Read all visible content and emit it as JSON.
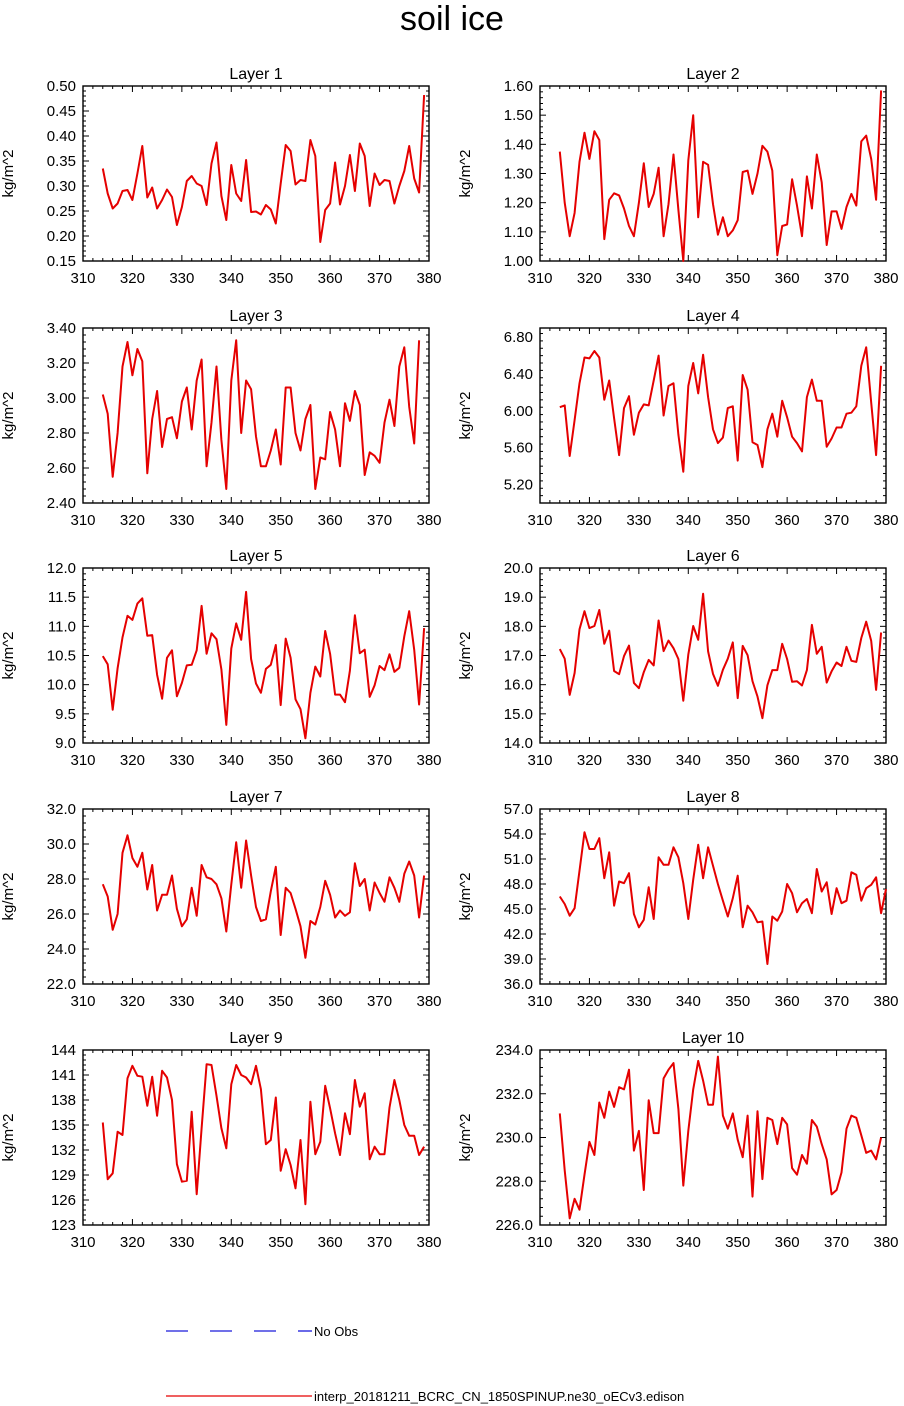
{
  "figure_title": "soil ice",
  "legend": {
    "obs_label": "No Obs",
    "obs_color": "#1a1adb",
    "model_label": "interp_20181211_BCRC_CN_1850SPINUP.ne30_oECv3.edison",
    "model_color": "#e50000"
  },
  "chart_data": [
    {
      "type": "line",
      "title": "Layer 1",
      "ylabel": "kg/m^2",
      "xlim": [
        310,
        380
      ],
      "ylim": [
        0.15,
        0.5
      ],
      "xticks": [
        310,
        320,
        330,
        340,
        350,
        360,
        370,
        380
      ],
      "yticks": [
        "0.15",
        "0.20",
        "0.25",
        "0.30",
        "0.35",
        "0.40",
        "0.45",
        "0.50"
      ],
      "x_start": 314,
      "values": [
        0.335,
        0.285,
        0.255,
        0.265,
        0.29,
        0.292,
        0.272,
        0.325,
        0.38,
        0.277,
        0.297,
        0.255,
        0.272,
        0.293,
        0.278,
        0.222,
        0.258,
        0.31,
        0.32,
        0.305,
        0.3,
        0.262,
        0.345,
        0.387,
        0.28,
        0.232,
        0.342,
        0.285,
        0.27,
        0.352,
        0.248,
        0.249,
        0.243,
        0.262,
        0.253,
        0.225,
        0.305,
        0.382,
        0.37,
        0.303,
        0.312,
        0.31,
        0.392,
        0.36,
        0.188,
        0.252,
        0.265,
        0.347,
        0.263,
        0.3,
        0.362,
        0.29,
        0.385,
        0.36,
        0.26,
        0.325,
        0.302,
        0.312,
        0.31,
        0.265,
        0.3,
        0.33,
        0.38,
        0.315,
        0.287,
        0.482
      ]
    },
    {
      "type": "line",
      "title": "Layer 2",
      "ylabel": "kg/m^2",
      "xlim": [
        310,
        380
      ],
      "ylim": [
        1.0,
        1.6
      ],
      "xticks": [
        310,
        320,
        330,
        340,
        350,
        360,
        370,
        380
      ],
      "yticks": [
        "1.00",
        "1.10",
        "1.20",
        "1.30",
        "1.40",
        "1.50",
        "1.60"
      ],
      "x_start": 314,
      "values": [
        1.375,
        1.2,
        1.085,
        1.165,
        1.34,
        1.44,
        1.35,
        1.445,
        1.415,
        1.075,
        1.21,
        1.232,
        1.225,
        1.18,
        1.12,
        1.085,
        1.2,
        1.335,
        1.185,
        1.23,
        1.32,
        1.085,
        1.195,
        1.365,
        1.175,
        1.0,
        1.345,
        1.5,
        1.15,
        1.34,
        1.33,
        1.195,
        1.09,
        1.15,
        1.085,
        1.105,
        1.14,
        1.305,
        1.31,
        1.23,
        1.3,
        1.395,
        1.375,
        1.31,
        1.02,
        1.12,
        1.125,
        1.28,
        1.19,
        1.085,
        1.29,
        1.18,
        1.365,
        1.27,
        1.055,
        1.17,
        1.17,
        1.11,
        1.185,
        1.23,
        1.19,
        1.41,
        1.43,
        1.35,
        1.21,
        1.585
      ]
    },
    {
      "type": "line",
      "title": "Layer 3",
      "ylabel": "kg/m^2",
      "xlim": [
        310,
        380
      ],
      "ylim": [
        2.4,
        3.4
      ],
      "xticks": [
        310,
        320,
        330,
        340,
        350,
        360,
        370,
        380
      ],
      "yticks": [
        "2.40",
        "2.60",
        "2.80",
        "3.00",
        "3.20",
        "3.40"
      ],
      "x_start": 314,
      "values": [
        3.02,
        2.91,
        2.55,
        2.8,
        3.18,
        3.32,
        3.13,
        3.28,
        3.21,
        2.57,
        2.88,
        3.04,
        2.72,
        2.88,
        2.89,
        2.77,
        2.98,
        3.06,
        2.82,
        3.1,
        3.22,
        2.61,
        2.86,
        3.18,
        2.76,
        2.48,
        3.1,
        3.33,
        2.8,
        3.1,
        3.05,
        2.78,
        2.61,
        2.61,
        2.7,
        2.82,
        2.62,
        3.06,
        3.06,
        2.8,
        2.7,
        2.88,
        2.96,
        2.48,
        2.66,
        2.65,
        2.92,
        2.82,
        2.61,
        2.97,
        2.87,
        3.04,
        2.96,
        2.56,
        2.69,
        2.67,
        2.63,
        2.86,
        2.99,
        2.84,
        3.18,
        3.29,
        2.95,
        2.74,
        3.33
      ]
    },
    {
      "type": "line",
      "title": "Layer 4",
      "ylabel": "kg/m^2",
      "xlim": [
        310,
        380
      ],
      "ylim": [
        5.0,
        6.9
      ],
      "xticks": [
        310,
        320,
        330,
        340,
        350,
        360,
        370,
        380
      ],
      "yticks": [
        "5.20",
        "5.60",
        "6.00",
        "6.40",
        "6.80"
      ],
      "x_start": 314,
      "values": [
        6.04,
        6.06,
        5.51,
        5.9,
        6.3,
        6.58,
        6.57,
        6.65,
        6.58,
        6.12,
        6.33,
        5.92,
        5.52,
        6.03,
        6.16,
        5.74,
        5.98,
        6.07,
        6.06,
        6.33,
        6.6,
        5.95,
        6.27,
        6.3,
        5.74,
        5.34,
        6.27,
        6.52,
        6.19,
        6.61,
        6.15,
        5.8,
        5.65,
        5.71,
        6.03,
        6.05,
        5.46,
        6.39,
        6.23,
        5.66,
        5.63,
        5.39,
        5.8,
        5.97,
        5.72,
        6.11,
        5.93,
        5.72,
        5.65,
        5.56,
        6.15,
        6.34,
        6.11,
        6.11,
        5.61,
        5.7,
        5.82,
        5.82,
        5.97,
        5.98,
        6.05,
        6.49,
        6.69,
        6.09,
        5.52,
        6.49
      ]
    },
    {
      "type": "line",
      "title": "Layer 5",
      "ylabel": "kg/m^2",
      "xlim": [
        310,
        380
      ],
      "ylim": [
        9.0,
        12.0
      ],
      "xticks": [
        310,
        320,
        330,
        340,
        350,
        360,
        370,
        380
      ],
      "yticks": [
        "9.0",
        "9.5",
        "10.0",
        "10.5",
        "11.0",
        "11.5",
        "12.0"
      ],
      "x_start": 314,
      "values": [
        10.49,
        10.35,
        9.57,
        10.28,
        10.81,
        11.18,
        11.11,
        11.39,
        11.48,
        10.84,
        10.85,
        10.17,
        9.76,
        10.46,
        10.59,
        9.8,
        10.03,
        10.33,
        10.34,
        10.59,
        11.35,
        10.53,
        10.88,
        10.78,
        10.26,
        9.31,
        10.62,
        11.05,
        10.77,
        11.59,
        10.44,
        10.02,
        9.86,
        10.27,
        10.34,
        10.68,
        9.65,
        10.79,
        10.46,
        9.75,
        9.58,
        9.08,
        9.86,
        10.31,
        10.14,
        10.92,
        10.53,
        9.83,
        9.83,
        9.7,
        10.24,
        11.19,
        10.54,
        10.6,
        9.79,
        9.99,
        10.32,
        10.25,
        10.52,
        10.22,
        10.29,
        10.83,
        11.26,
        10.6,
        9.66,
        10.97
      ]
    },
    {
      "type": "line",
      "title": "Layer 6",
      "ylabel": "kg/m^2",
      "xlim": [
        310,
        380
      ],
      "ylim": [
        14.0,
        20.0
      ],
      "xticks": [
        310,
        320,
        330,
        340,
        350,
        360,
        370,
        380
      ],
      "yticks": [
        "14.0",
        "15.0",
        "16.0",
        "17.0",
        "18.0",
        "19.0",
        "20.0"
      ],
      "x_start": 314,
      "values": [
        17.22,
        16.89,
        15.65,
        16.4,
        17.9,
        18.52,
        17.94,
        18.01,
        18.56,
        17.4,
        17.85,
        16.47,
        16.36,
        16.98,
        17.34,
        16.06,
        15.88,
        16.43,
        16.85,
        16.66,
        18.2,
        17.15,
        17.51,
        17.25,
        16.88,
        15.45,
        17.03,
        18.01,
        17.54,
        19.12,
        17.14,
        16.37,
        15.96,
        16.51,
        16.89,
        17.45,
        15.54,
        17.33,
        17.01,
        16.12,
        15.59,
        14.85,
        15.98,
        16.5,
        16.5,
        17.4,
        16.88,
        16.1,
        16.12,
        15.97,
        16.5,
        18.05,
        17.06,
        17.3,
        16.07,
        16.46,
        16.76,
        16.64,
        17.3,
        16.82,
        16.78,
        17.6,
        18.16,
        17.5,
        15.82,
        17.79
      ]
    },
    {
      "type": "line",
      "title": "Layer 7",
      "ylabel": "kg/m^2",
      "xlim": [
        310,
        380
      ],
      "ylim": [
        22.0,
        32.0
      ],
      "xticks": [
        310,
        320,
        330,
        340,
        350,
        360,
        370,
        380
      ],
      "yticks": [
        "22.0",
        "24.0",
        "26.0",
        "28.0",
        "30.0",
        "32.0"
      ],
      "x_start": 314,
      "values": [
        27.7,
        27.0,
        25.1,
        26.0,
        29.5,
        30.5,
        29.2,
        28.7,
        29.5,
        27.4,
        28.8,
        26.2,
        27.1,
        27.1,
        28.2,
        26.3,
        25.3,
        25.7,
        27.5,
        25.9,
        28.8,
        28.1,
        28.0,
        27.7,
        26.9,
        25.0,
        27.7,
        30.1,
        27.5,
        30.2,
        28.2,
        26.4,
        25.6,
        25.7,
        27.3,
        28.7,
        24.8,
        27.5,
        27.2,
        26.3,
        25.3,
        23.5,
        25.6,
        25.4,
        26.4,
        27.9,
        27.1,
        25.8,
        26.2,
        25.9,
        26.1,
        28.9,
        27.6,
        28.0,
        26.2,
        27.8,
        27.2,
        26.7,
        28.1,
        27.5,
        26.7,
        28.3,
        29.0,
        28.2,
        25.8,
        28.2
      ]
    },
    {
      "type": "line",
      "title": "Layer 8",
      "ylabel": "kg/m^2",
      "xlim": [
        310,
        380
      ],
      "ylim": [
        36.0,
        57.0
      ],
      "xticks": [
        310,
        320,
        330,
        340,
        350,
        360,
        370,
        380
      ],
      "yticks": [
        "36.0",
        "39.0",
        "42.0",
        "45.0",
        "48.0",
        "51.0",
        "54.0",
        "57.0"
      ],
      "x_start": 314,
      "values": [
        46.5,
        45.6,
        44.2,
        45.1,
        49.6,
        54.2,
        52.2,
        52.2,
        53.5,
        48.7,
        51.8,
        45.4,
        48.3,
        48.1,
        49.3,
        44.4,
        42.8,
        43.7,
        47.6,
        43.8,
        51.2,
        50.3,
        50.3,
        52.4,
        51.2,
        48.1,
        43.8,
        48.5,
        52.7,
        48.7,
        52.4,
        50.2,
        48.0,
        46.0,
        44.1,
        46.3,
        49.0,
        42.8,
        45.4,
        44.6,
        43.4,
        43.5,
        38.4,
        44.1,
        43.6,
        44.7,
        48.0,
        46.9,
        44.6,
        45.7,
        46.2,
        44.5,
        49.8,
        47.1,
        48.2,
        44.4,
        47.5,
        45.7,
        46.0,
        49.4,
        49.1,
        46.0,
        47.5,
        47.9,
        48.8,
        44.5,
        47.4
      ]
    },
    {
      "type": "line",
      "title": "Layer 9",
      "ylabel": "kg/m^2",
      "xlim": [
        310,
        380
      ],
      "ylim": [
        123,
        144
      ],
      "xticks": [
        310,
        320,
        330,
        340,
        350,
        360,
        370,
        380
      ],
      "yticks": [
        "123",
        "126",
        "129",
        "132",
        "135",
        "138",
        "141",
        "144"
      ],
      "x_start": 314,
      "values": [
        135.3,
        128.5,
        129.2,
        134.2,
        133.8,
        140.6,
        142.1,
        140.9,
        140.8,
        137.3,
        140.8,
        136.1,
        141.5,
        140.7,
        138.0,
        130.3,
        128.2,
        128.3,
        136.6,
        126.7,
        134.6,
        142.3,
        142.2,
        138.5,
        134.6,
        132.2,
        139.9,
        142.2,
        141.0,
        140.7,
        139.9,
        142.1,
        139.3,
        132.7,
        133.2,
        138.3,
        129.5,
        132.1,
        130.2,
        127.4,
        133.2,
        125.5,
        137.8,
        131.5,
        133.0,
        139.7,
        137.0,
        134.0,
        131.4,
        136.4,
        133.9,
        140.4,
        137.2,
        138.8,
        130.9,
        132.4,
        131.5,
        131.5,
        137.1,
        140.4,
        138.0,
        135.0,
        133.7,
        133.7,
        131.4,
        132.4
      ]
    },
    {
      "type": "line",
      "title": "Layer 10",
      "ylabel": "kg/m^2",
      "xlim": [
        310,
        380
      ],
      "ylim": [
        226.0,
        234.0
      ],
      "xticks": [
        310,
        320,
        330,
        340,
        350,
        360,
        370,
        380
      ],
      "yticks": [
        "226.0",
        "228.0",
        "230.0",
        "232.0",
        "234.0"
      ],
      "x_start": 314,
      "values": [
        231.1,
        228.5,
        226.3,
        227.2,
        226.7,
        228.3,
        229.8,
        229.2,
        231.6,
        230.9,
        232.1,
        231.4,
        232.3,
        232.2,
        233.1,
        229.4,
        230.3,
        227.6,
        231.7,
        230.2,
        230.2,
        232.7,
        233.1,
        233.4,
        231.3,
        227.8,
        230.3,
        232.2,
        233.5,
        232.6,
        231.5,
        231.5,
        233.7,
        231.0,
        230.4,
        231.1,
        229.9,
        229.1,
        231.0,
        227.3,
        231.2,
        228.1,
        230.9,
        230.8,
        229.7,
        230.9,
        230.6,
        228.6,
        228.3,
        229.2,
        228.8,
        230.8,
        230.5,
        229.7,
        229.0,
        227.4,
        227.6,
        228.4,
        230.4,
        231.0,
        230.9,
        230.1,
        229.3,
        229.4,
        229.0,
        230.0
      ]
    }
  ]
}
